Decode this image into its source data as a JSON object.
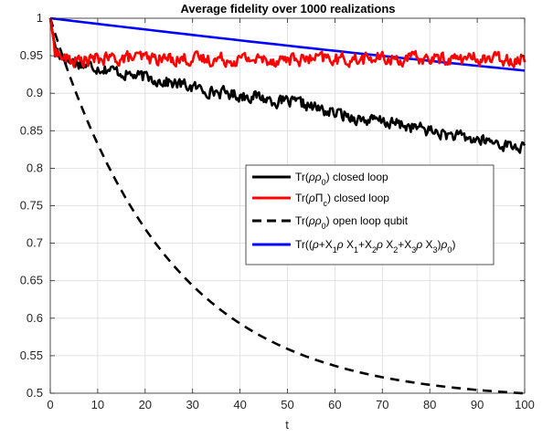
{
  "chart_data": {
    "type": "line",
    "title": "Average fidelity  over 1000 realizations",
    "xlabel": "t",
    "ylabel": "",
    "xlim": [
      0,
      100
    ],
    "ylim": [
      0.5,
      1
    ],
    "xticks": [
      "0",
      "10",
      "20",
      "30",
      "40",
      "50",
      "60",
      "70",
      "80",
      "90",
      "100"
    ],
    "yticks": [
      "0.5",
      "0.55",
      "0.6",
      "0.65",
      "0.7",
      "0.75",
      "0.8",
      "0.85",
      "0.9",
      "0.95",
      "1"
    ],
    "grid": true,
    "legend_position": "center-right",
    "x": [
      0,
      1,
      2,
      3,
      4,
      5,
      6,
      7,
      8,
      9,
      10,
      12,
      14,
      16,
      18,
      20,
      22,
      24,
      26,
      28,
      30,
      32,
      34,
      36,
      38,
      40,
      42,
      44,
      46,
      48,
      50,
      52,
      54,
      56,
      58,
      60,
      62,
      64,
      66,
      68,
      70,
      72,
      74,
      76,
      78,
      80,
      82,
      84,
      86,
      88,
      90,
      92,
      94,
      96,
      98,
      100
    ],
    "series": [
      {
        "name": "Tr(ρρ0) closed loop",
        "color": "#000000",
        "style": "solid",
        "values": [
          1.0,
          0.962,
          0.952,
          0.948,
          0.944,
          0.942,
          0.94,
          0.938,
          0.937,
          0.936,
          0.935,
          0.933,
          0.929,
          0.926,
          0.923,
          0.921,
          0.919,
          0.916,
          0.913,
          0.911,
          0.908,
          0.905,
          0.903,
          0.901,
          0.899,
          0.897,
          0.897,
          0.895,
          0.892,
          0.889,
          0.888,
          0.886,
          0.884,
          0.88,
          0.876,
          0.873,
          0.871,
          0.868,
          0.865,
          0.863,
          0.862,
          0.86,
          0.858,
          0.855,
          0.853,
          0.85,
          0.847,
          0.844,
          0.842,
          0.839,
          0.838,
          0.836,
          0.834,
          0.831,
          0.829,
          0.827
        ]
      },
      {
        "name": "Tr(ρΠc) closed loop",
        "color": "#ff0000",
        "style": "solid",
        "values": [
          1.0,
          0.958,
          0.95,
          0.946,
          0.944,
          0.943,
          0.943,
          0.944,
          0.944,
          0.945,
          0.945,
          0.946,
          0.946,
          0.947,
          0.947,
          0.947,
          0.946,
          0.946,
          0.946,
          0.946,
          0.946,
          0.945,
          0.945,
          0.946,
          0.945,
          0.946,
          0.946,
          0.945,
          0.945,
          0.945,
          0.946,
          0.945,
          0.945,
          0.945,
          0.946,
          0.945,
          0.945,
          0.945,
          0.946,
          0.946,
          0.946,
          0.946,
          0.945,
          0.946,
          0.946,
          0.946,
          0.946,
          0.946,
          0.946,
          0.946,
          0.946,
          0.946,
          0.946,
          0.946,
          0.946,
          0.947
        ]
      },
      {
        "name": "Tr(ρρ0) open loop qubit",
        "color": "#000000",
        "style": "dashed",
        "values": [
          1.0,
          0.9801,
          0.9609,
          0.9425,
          0.9248,
          0.9077,
          0.8914,
          0.8757,
          0.8606,
          0.846,
          0.8321,
          0.8058,
          0.7815,
          0.759,
          0.7383,
          0.7191,
          0.7015,
          0.6852,
          0.6701,
          0.6562,
          0.6434,
          0.6316,
          0.6208,
          0.6107,
          0.6014,
          0.5929,
          0.585,
          0.5777,
          0.571,
          0.5648,
          0.5591,
          0.5538,
          0.5489,
          0.5444,
          0.5403,
          0.5365,
          0.5329,
          0.5297,
          0.5267,
          0.5239,
          0.5213,
          0.519,
          0.5168,
          0.5148,
          0.5129,
          0.5112,
          0.5096,
          0.5081,
          0.5068,
          0.5055,
          0.5043,
          0.5033,
          0.5023,
          0.5014,
          0.5005,
          0.4998
        ]
      },
      {
        "name": "Tr((ρ+X1ρX1+X2ρX2+X3ρX3)ρ0)",
        "color": "#0000ff",
        "style": "solid",
        "values": [
          1.0,
          0.9993,
          0.9985,
          0.9977,
          0.997,
          0.9962,
          0.9955,
          0.9947,
          0.994,
          0.9932,
          0.9925,
          0.991,
          0.9895,
          0.988,
          0.9865,
          0.9851,
          0.9836,
          0.9821,
          0.9806,
          0.9792,
          0.9777,
          0.9763,
          0.9748,
          0.9734,
          0.972,
          0.9705,
          0.9691,
          0.9677,
          0.9663,
          0.9649,
          0.9635,
          0.9621,
          0.9607,
          0.9593,
          0.9579,
          0.9566,
          0.9552,
          0.9538,
          0.9525,
          0.9511,
          0.9498,
          0.9485,
          0.9471,
          0.9458,
          0.9445,
          0.9432,
          0.9418,
          0.9405,
          0.9392,
          0.9379,
          0.9366,
          0.9353,
          0.9341,
          0.9328,
          0.9315,
          0.9302
        ]
      }
    ]
  }
}
